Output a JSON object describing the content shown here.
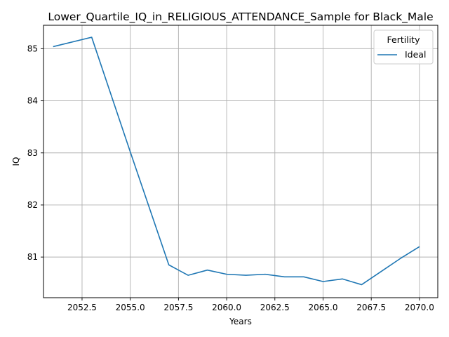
{
  "chart_data": {
    "type": "line",
    "title": "Lower_Quartile_IQ_in_RELIGIOUS_ATTENDANCE_Sample for Black_Male",
    "xlabel": "Years",
    "ylabel": "IQ",
    "xlim": [
      2050.5,
      2070.95
    ],
    "ylim": [
      80.22,
      85.45
    ],
    "x_ticks": [
      2052.5,
      2055.0,
      2057.5,
      2060.0,
      2062.5,
      2065.0,
      2067.5,
      2070.0
    ],
    "x_tick_labels": [
      "2052.5",
      "2055.0",
      "2057.5",
      "2060.0",
      "2062.5",
      "2065.0",
      "2067.5",
      "2070.0"
    ],
    "y_ticks": [
      81,
      82,
      83,
      84,
      85
    ],
    "y_tick_labels": [
      "81",
      "82",
      "83",
      "84",
      "85"
    ],
    "grid": true,
    "legend": {
      "title": "Fertility",
      "placement": "top-right"
    },
    "series": [
      {
        "name": "Ideal",
        "color": "#1f77b4",
        "x": [
          2051,
          2053,
          2055,
          2057,
          2058,
          2059,
          2060,
          2061,
          2062,
          2063,
          2064,
          2065,
          2066,
          2067,
          2068,
          2069,
          2070
        ],
        "y": [
          85.04,
          85.22,
          83.02,
          80.85,
          80.65,
          80.75,
          80.67,
          80.65,
          80.67,
          80.62,
          80.62,
          80.53,
          80.58,
          80.47,
          80.72,
          80.97,
          81.2
        ]
      }
    ]
  }
}
